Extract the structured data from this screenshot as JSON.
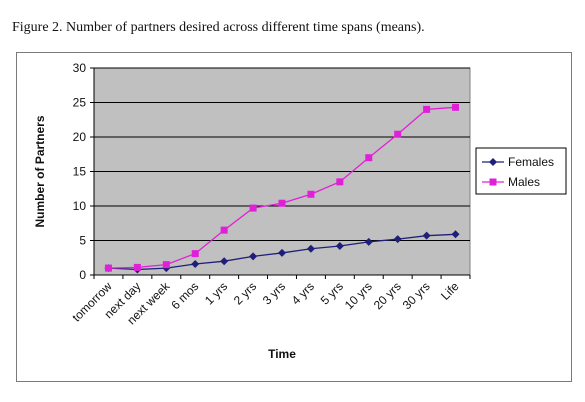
{
  "figure": {
    "caption": "Figure 2. Number of partners desired across different time spans (means)."
  },
  "chart_data": {
    "type": "line",
    "title": "",
    "xlabel": "Time",
    "ylabel": "Number of Partners",
    "ylim": [
      0,
      30
    ],
    "yticks": [
      0,
      5,
      10,
      15,
      20,
      25,
      30
    ],
    "grid": true,
    "legend_position": "right",
    "plot_background": "#c0c0c0",
    "categories": [
      "tomorrow",
      "next day",
      "next week",
      "6 mos",
      "1 yrs",
      "2 yrs",
      "3 yrs",
      "4 yrs",
      "5 yrs",
      "10 yrs",
      "20 yrs",
      "30 yrs",
      "Life"
    ],
    "series": [
      {
        "name": "Females",
        "color": "#1f1f7a",
        "marker": "diamond",
        "values": [
          1.0,
          0.8,
          1.0,
          1.6,
          2.0,
          2.7,
          3.2,
          3.8,
          4.2,
          4.8,
          5.2,
          5.7,
          5.9
        ]
      },
      {
        "name": "Males",
        "color": "#e020d8",
        "marker": "square",
        "values": [
          1.0,
          1.1,
          1.5,
          3.1,
          6.5,
          9.7,
          10.4,
          11.7,
          13.5,
          17.0,
          20.4,
          24.0,
          24.3
        ]
      }
    ]
  }
}
